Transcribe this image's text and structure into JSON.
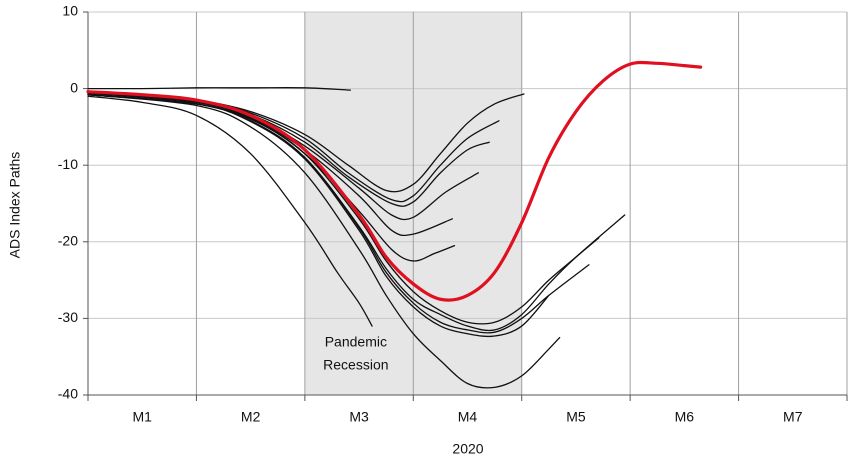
{
  "chart_data": {
    "type": "line",
    "y_label": "ADS Index Paths",
    "x_label": "2020",
    "annotation": [
      "Pandemic",
      "Recession"
    ],
    "shade": [
      2,
      4
    ],
    "shade_color": "#e6e6e6",
    "xlim": [
      0,
      7
    ],
    "ylim": [
      -40,
      10
    ],
    "yticks": [
      10,
      0,
      -10,
      -20,
      -30,
      -40
    ],
    "xticks": [
      {
        "value": 0.5,
        "label": "M1"
      },
      {
        "value": 1.5,
        "label": "M2"
      },
      {
        "value": 2.5,
        "label": "M3"
      },
      {
        "value": 3.5,
        "label": "M4"
      },
      {
        "value": 4.5,
        "label": "M5"
      },
      {
        "value": 5.5,
        "label": "M6"
      },
      {
        "value": 6.5,
        "label": "M7"
      }
    ],
    "xgrid": [
      0,
      1,
      2,
      3,
      4,
      5,
      6,
      7
    ],
    "grid": true,
    "series": [
      {
        "color": "#111111",
        "x": [
          0,
          0.5,
          1,
          1.5,
          2,
          2.42
        ],
        "values": [
          0,
          0,
          0.1,
          0.1,
          0.1,
          -0.2
        ]
      },
      {
        "color": "#111111",
        "x": [
          0,
          0.5,
          1,
          1.5,
          2,
          2.4,
          2.75,
          3,
          3.25,
          3.5,
          3.75,
          4.02
        ],
        "values": [
          -0.5,
          -0.8,
          -1.5,
          -3,
          -6,
          -10,
          -13.3,
          -12.5,
          -8.5,
          -4.5,
          -2,
          -0.7
        ]
      },
      {
        "color": "#111111",
        "x": [
          0,
          1,
          1.5,
          2,
          2.4,
          2.8,
          3,
          3.25,
          3.5,
          3.79
        ],
        "values": [
          -0.5,
          -1.5,
          -3.2,
          -6.5,
          -11,
          -14.5,
          -14,
          -10,
          -6.5,
          -4.2
        ]
      },
      {
        "color": "#111111",
        "x": [
          0,
          1,
          1.5,
          2,
          2.4,
          2.8,
          3,
          3.25,
          3.5,
          3.7
        ],
        "values": [
          -0.6,
          -1.6,
          -3.4,
          -7,
          -11.5,
          -15,
          -14.8,
          -11,
          -8,
          -7
        ]
      },
      {
        "color": "#111111",
        "x": [
          0,
          1,
          1.5,
          2,
          2.5,
          2.8,
          3,
          3.3,
          3.6
        ],
        "values": [
          -0.6,
          -1.7,
          -3.6,
          -7.5,
          -13,
          -16.5,
          -16.8,
          -13.5,
          -11
        ]
      },
      {
        "color": "#111111",
        "x": [
          0,
          1,
          1.5,
          2,
          2.5,
          2.8,
          3,
          3.36
        ],
        "values": [
          -0.6,
          -1.8,
          -3.8,
          -8,
          -14,
          -18.5,
          -19,
          -17
        ]
      },
      {
        "color": "#111111",
        "x": [
          0,
          1,
          1.5,
          2,
          2.5,
          2.8,
          3,
          3.2,
          3.38
        ],
        "values": [
          -0.6,
          -1.8,
          -3.9,
          -8.5,
          -16,
          -21,
          -22.5,
          -21.5,
          -20.5
        ]
      },
      {
        "color": "#111111",
        "x": [
          0,
          1,
          1.5,
          2,
          2.5,
          2.75,
          3,
          3.25,
          3.5,
          3.75,
          4,
          4.25,
          4.5,
          4.71
        ],
        "values": [
          -0.8,
          -2,
          -4,
          -8.5,
          -17,
          -22.5,
          -26.5,
          -29,
          -30.5,
          -30.5,
          -28.5,
          -25,
          -22,
          -19.5
        ]
      },
      {
        "color": "#111111",
        "x": [
          0,
          1,
          1.5,
          2,
          2.5,
          2.75,
          3,
          3.25,
          3.5,
          3.75,
          4,
          4.25,
          4.5,
          4.95
        ],
        "values": [
          -0.8,
          -2,
          -4.2,
          -9,
          -18,
          -23.5,
          -27.5,
          -29.5,
          -31,
          -31.5,
          -29.5,
          -25.5,
          -22,
          -16.5
        ]
      },
      {
        "color": "#111111",
        "x": [
          0,
          1,
          1.5,
          2,
          2.5,
          2.75,
          3,
          3.25,
          3.5,
          3.75,
          4,
          4.25,
          4.62
        ],
        "values": [
          -0.8,
          -2,
          -4.2,
          -9,
          -18.2,
          -24,
          -28,
          -30.5,
          -31.5,
          -31.8,
          -30,
          -27,
          -23
        ]
      },
      {
        "color": "#111111",
        "x": [
          0,
          1,
          1.5,
          2,
          2.5,
          2.75,
          3,
          3.25,
          3.5,
          3.75,
          4,
          4.25
        ],
        "values": [
          -0.8,
          -2,
          -4.3,
          -9.2,
          -18.5,
          -24.5,
          -28.5,
          -31,
          -32,
          -32.3,
          -31,
          -27
        ]
      },
      {
        "color": "#111111",
        "x": [
          0,
          1,
          1.5,
          2,
          2.5,
          2.75,
          3,
          3.25,
          3.5,
          3.75,
          4,
          4.25,
          4.35
        ],
        "values": [
          -0.8,
          -2.2,
          -5,
          -11,
          -21,
          -27,
          -32,
          -35.5,
          -38.5,
          -39,
          -37.5,
          -34,
          -32.5
        ]
      },
      {
        "color": "#111111",
        "x": [
          0,
          0.5,
          1,
          1.5,
          2,
          2.3,
          2.5,
          2.62
        ],
        "values": [
          -1,
          -1.8,
          -3.5,
          -8.5,
          -17.5,
          -24,
          -28,
          -31
        ]
      },
      {
        "color": "#e01020",
        "x": [
          0,
          0.5,
          1,
          1.5,
          2,
          2.5,
          2.75,
          3,
          3.25,
          3.5,
          3.75,
          4,
          4.25,
          4.5,
          4.75,
          5,
          5.25,
          5.5,
          5.65
        ],
        "values": [
          -0.4,
          -0.8,
          -1.5,
          -3.5,
          -8,
          -16.5,
          -22,
          -25.5,
          -27.5,
          -27,
          -24,
          -17.5,
          -9,
          -3,
          1,
          3.2,
          3.3,
          3,
          2.8
        ]
      }
    ]
  }
}
